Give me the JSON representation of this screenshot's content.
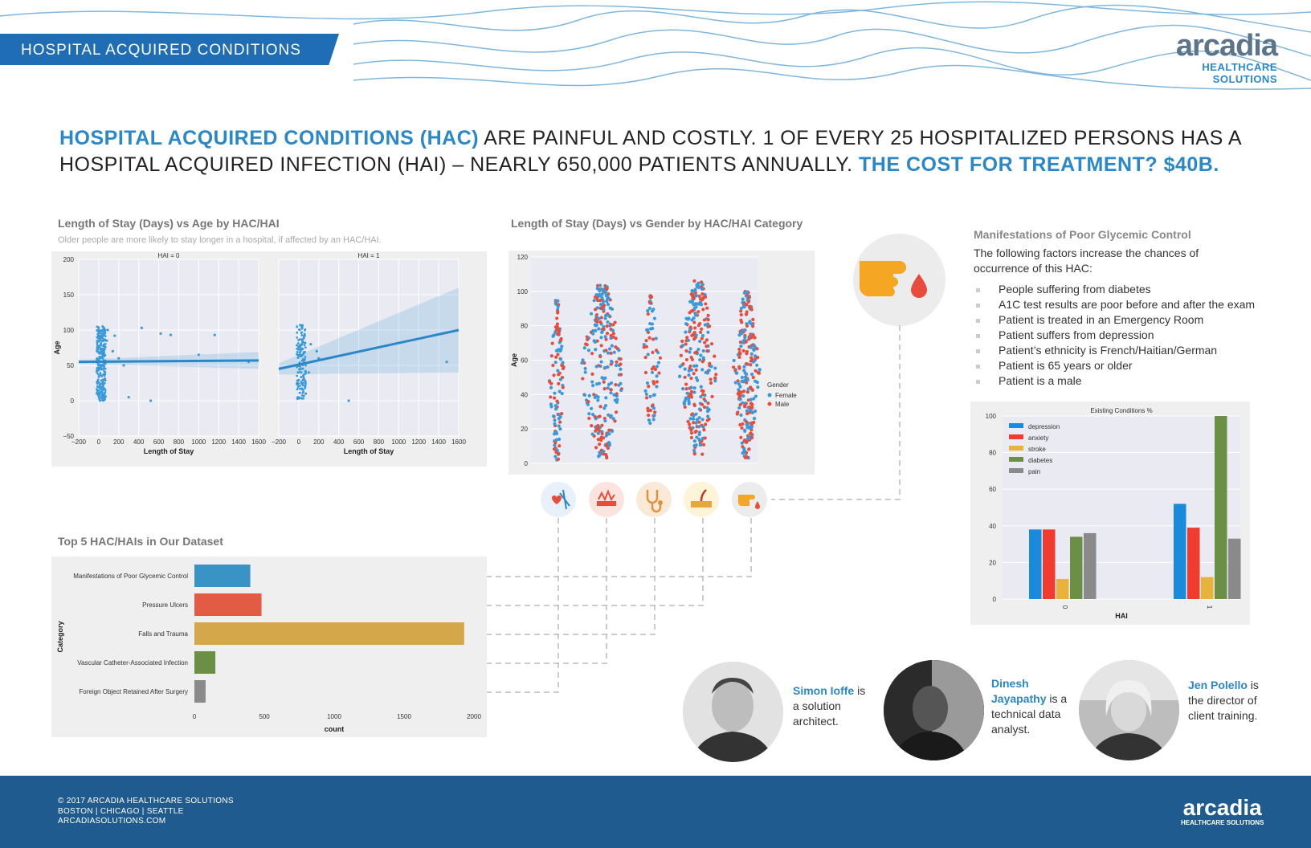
{
  "banner": {
    "title": "HOSPITAL ACQUIRED CONDITIONS"
  },
  "logo": {
    "name": "arcadia",
    "tagline": "HEALTHCARE SOLUTIONS"
  },
  "headline": {
    "p1": "HOSPITAL ACQUIRED CONDITIONS (HAC)",
    "p2": " ARE PAINFUL AND COSTLY.  1 OF EVERY 25 HOSPITALIZED PERSONS HAS A HOSPITAL ACQUIRED INFECTION (HAI) – NEARLY 650,000 PATIENTS ANNUALLY.  ",
    "p3": "THE COST FOR TREATMENT? $40B."
  },
  "colors": {
    "blue": "#2a87c8",
    "dark_blue": "#1f5b8e",
    "female": "#3a9ad9",
    "male": "#e74c3c",
    "panel_bg": "#efefef"
  },
  "icons": [
    "heart-lung-icon",
    "wound-icon",
    "stethoscope-icon",
    "skin-layer-icon",
    "finger-blood-icon"
  ],
  "chart_data": [
    {
      "id": "los-vs-age",
      "type": "scatter",
      "title": "Length of Stay (Days) vs Age by HAC/HAI",
      "subtitle": "Older people are more likely to stay longer in a hospital, if affected by an HAC/HAI.",
      "xlabel": "Length of Stay",
      "ylabel": "Age",
      "xlim": [
        -200,
        1600
      ],
      "ylim": [
        -50,
        200
      ],
      "xticks": [
        "−200",
        "0",
        "200",
        "400",
        "600",
        "800",
        "1000",
        "1200",
        "1400",
        "1600"
      ],
      "yticks": [
        "−50",
        "0",
        "50",
        "100",
        "150",
        "200"
      ],
      "facets": [
        {
          "title": "HAI = 0",
          "fit": {
            "x": [
              -200,
              1600
            ],
            "y": [
              55,
              57
            ]
          },
          "points": [
            [
              40,
              105
            ],
            [
              90,
              100
            ],
            [
              160,
              92
            ],
            [
              200,
              60
            ],
            [
              250,
              50
            ],
            [
              430,
              103
            ],
            [
              620,
              95
            ],
            [
              720,
              93
            ],
            [
              1160,
              93
            ],
            [
              1000,
              65
            ],
            [
              1500,
              55
            ],
            [
              520,
              0
            ],
            [
              300,
              5
            ],
            [
              80,
              85
            ],
            [
              140,
              70
            ]
          ]
        },
        {
          "title": "HAI = 1",
          "fit": {
            "x": [
              -200,
              1600
            ],
            "y": [
              45,
              100
            ]
          },
          "points": [
            [
              30,
              105
            ],
            [
              60,
              92
            ],
            [
              120,
              80
            ],
            [
              180,
              70
            ],
            [
              100,
              40
            ],
            [
              500,
              0
            ],
            [
              1480,
              55
            ],
            [
              70,
              10
            ],
            [
              200,
              60
            ]
          ]
        }
      ]
    },
    {
      "id": "los-vs-gender",
      "type": "scatter",
      "title": "Length of Stay (Days) vs Gender by HAC/HAI Category",
      "ylabel": "Age",
      "ylim": [
        0,
        120
      ],
      "yticks": [
        "0",
        "20",
        "40",
        "60",
        "80",
        "100",
        "120"
      ],
      "legend": {
        "title": "Gender",
        "items": [
          "Female",
          "Male"
        ],
        "position": "right"
      },
      "categories": 5,
      "ranges": [
        [
          2,
          96
        ],
        [
          3,
          104
        ],
        [
          22,
          98
        ],
        [
          5,
          107
        ],
        [
          3,
          100
        ]
      ]
    },
    {
      "id": "top5",
      "type": "bar",
      "orientation": "horizontal",
      "title": "Top 5 HAC/HAIs in Our Dataset",
      "xlabel": "count",
      "ylabel": "Category",
      "xlim": [
        0,
        2000
      ],
      "xticks": [
        "0",
        "500",
        "1000",
        "1500",
        "2000"
      ],
      "categories": [
        "Manifestations of Poor Glycemic Control",
        "Pressure Ulcers",
        "Falls and Trauma",
        "Vascular Catheter-Associated Infection",
        "Foreign Object Retained After Surgery"
      ],
      "values": [
        400,
        480,
        1930,
        150,
        80
      ],
      "colors": [
        "#3a93c5",
        "#e35b45",
        "#d4a84a",
        "#6b8f45",
        "#8a8a8a"
      ]
    },
    {
      "id": "existing-conditions",
      "type": "bar",
      "title": "Existing Conditions %",
      "xlabel": "HAI",
      "ylim": [
        0,
        100
      ],
      "yticks": [
        "0",
        "20",
        "40",
        "60",
        "80",
        "100"
      ],
      "categories": [
        "0",
        "1"
      ],
      "series": [
        {
          "name": "depression",
          "values": [
            38,
            52
          ],
          "color": "#1a8bdb"
        },
        {
          "name": "anxiety",
          "values": [
            38,
            39
          ],
          "color": "#f03c2e"
        },
        {
          "name": "stroke",
          "values": [
            11,
            12
          ],
          "color": "#e9b23a"
        },
        {
          "name": "diabetes",
          "values": [
            34,
            100
          ],
          "color": "#6a8f45"
        },
        {
          "name": "pain",
          "values": [
            36,
            33
          ],
          "color": "#8a8a8a"
        }
      ]
    }
  ],
  "glycemic": {
    "title": "Manifestations of Poor Glycemic Control",
    "intro": "The following factors increase the chances of occurrence of this HAC:",
    "items": [
      "People suffering from diabetes",
      "A1C test results are poor before and after the exam",
      "Patient is treated in an Emergency Room",
      "Patient suffers from depression",
      "Patient’s ethnicity is French/Haitian/German",
      "Patient is 65 years or older",
      "Patient is a male"
    ]
  },
  "team": [
    {
      "name": "Simon Ioffe",
      "role": " is a solution architect."
    },
    {
      "name": "Dinesh Jayapathy",
      "role": " is a technical data analyst."
    },
    {
      "name": "Jen Polello",
      "role": " is the director of client training."
    }
  ],
  "footer": {
    "line1": "© 2017 ARCADIA HEALTHCARE SOLUTIONS",
    "line2": "BOSTON | CHICAGO | SEATTLE",
    "line3": "ARCADIASOLUTIONS.COM",
    "logo": "arcadia",
    "tagline": "HEALTHCARE SOLUTIONS"
  }
}
